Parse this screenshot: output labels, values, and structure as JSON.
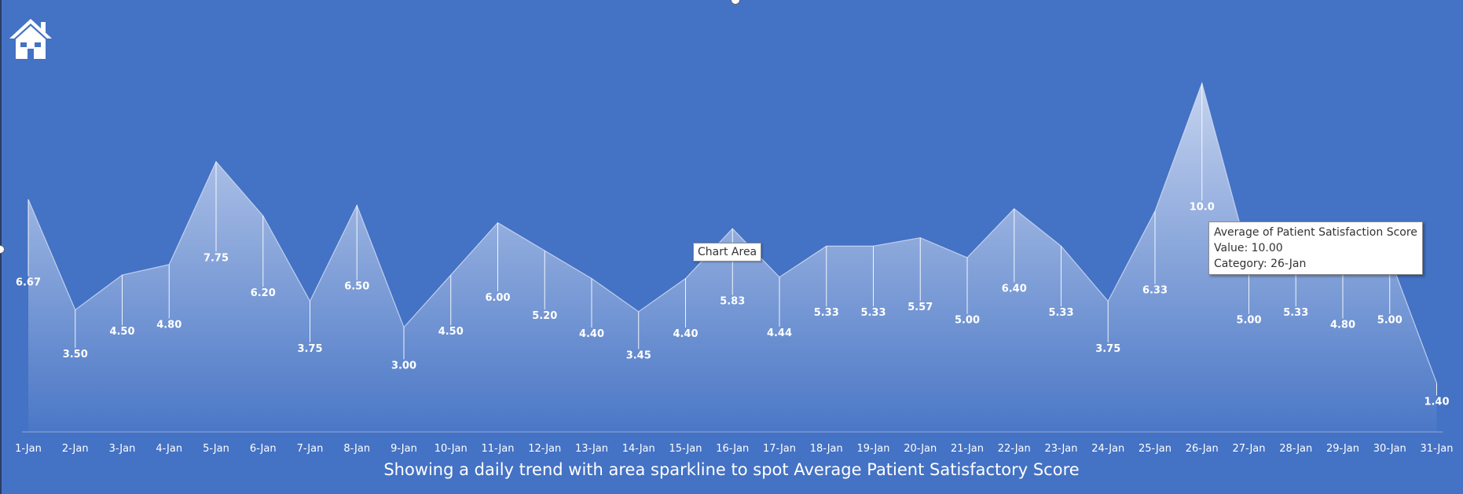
{
  "caption": "Showing a daily trend with area sparkline to spot Average Patient Satisfactory Score",
  "chart_area_tooltip": "Chart Area",
  "tooltip": {
    "series_name": "Average of Patient Satisfaction Score",
    "value_line": "Value: 10.00",
    "category_line": "Category: 26-Jan"
  },
  "icons": {
    "home": "home-icon"
  },
  "colors": {
    "background": "#4472c4",
    "area_top": "#c4d2ee",
    "area_bottom": "#4a77c6",
    "text": "#ffffff"
  },
  "chart_data": {
    "type": "area",
    "title": "",
    "xlabel": "",
    "ylabel": "",
    "ylim": [
      0,
      10
    ],
    "grid": false,
    "legend": "none",
    "categories": [
      "1-Jan",
      "2-Jan",
      "3-Jan",
      "4-Jan",
      "5-Jan",
      "6-Jan",
      "7-Jan",
      "8-Jan",
      "9-Jan",
      "10-Jan",
      "11-Jan",
      "12-Jan",
      "13-Jan",
      "14-Jan",
      "15-Jan",
      "16-Jan",
      "17-Jan",
      "18-Jan",
      "19-Jan",
      "20-Jan",
      "21-Jan",
      "22-Jan",
      "23-Jan",
      "24-Jan",
      "25-Jan",
      "26-Jan",
      "27-Jan",
      "28-Jan",
      "29-Jan",
      "30-Jan",
      "31-Jan"
    ],
    "values": [
      6.67,
      3.5,
      4.5,
      4.8,
      7.75,
      6.2,
      3.75,
      6.5,
      3.0,
      4.5,
      6.0,
      5.2,
      4.4,
      3.45,
      4.4,
      5.83,
      4.44,
      5.33,
      5.33,
      5.57,
      5.0,
      6.4,
      5.33,
      3.75,
      6.33,
      10.0,
      5.0,
      5.33,
      4.8,
      5.0,
      1.4
    ],
    "data_labels": [
      "6.67",
      "3.50",
      "4.50",
      "4.80",
      "7.75",
      "6.20",
      "3.75",
      "6.50",
      "3.00",
      "4.50",
      "6.00",
      "5.20",
      "4.40",
      "3.45",
      "4.40",
      "5.83",
      "4.44",
      "5.33",
      "5.33",
      "5.57",
      "5.00",
      "6.40",
      "5.33",
      "3.75",
      "6.33",
      "10.0",
      "5.00",
      "5.33",
      "4.80",
      "5.00",
      "1.40"
    ]
  }
}
